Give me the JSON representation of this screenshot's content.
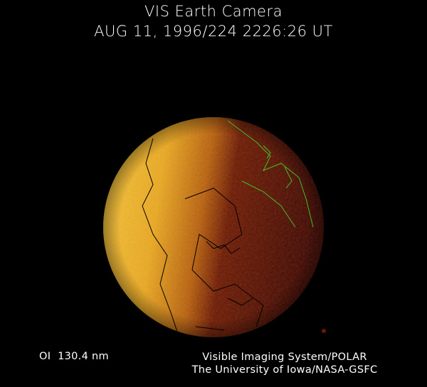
{
  "header": {
    "title": "VIS Earth Camera",
    "timestamp": "AUG 11, 1996/224 2226:26 UT"
  },
  "footer": {
    "wavelength": "OI  130.4 nm",
    "credit_line1": "Visible Imaging System/POLAR",
    "credit_line2": "The University of Iowa/NASA-GSFC"
  },
  "colors": {
    "background": "#000000",
    "dayside": "#f2b82a",
    "nightside": "#4a0a00",
    "coastline_day": "#000000",
    "coastline_night": "#3fbf2a"
  }
}
